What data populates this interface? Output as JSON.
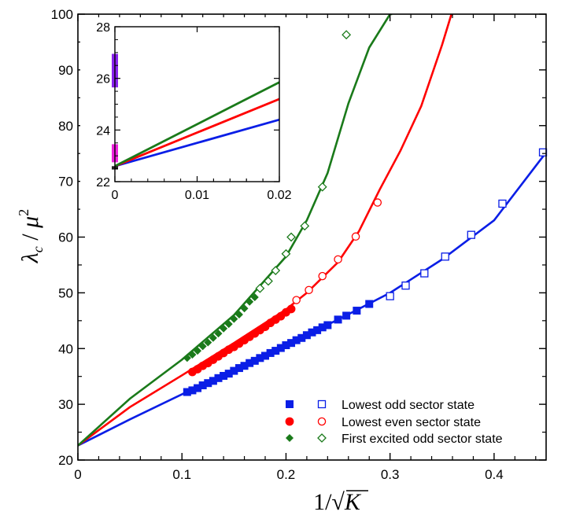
{
  "chart_data": [
    {
      "type": "line",
      "id": "main",
      "xlabel": "1/√K",
      "ylabel": "λc / μ²",
      "xlim": [
        0,
        0.45
      ],
      "ylim": [
        20,
        100
      ],
      "xticks": [
        "0",
        "0.1",
        "0.2",
        "0.3",
        "0.4"
      ],
      "xtick_values": [
        0,
        0.1,
        0.2,
        0.3,
        0.4
      ],
      "yticks": [
        "20",
        "30",
        "40",
        "50",
        "60",
        "70",
        "80",
        "90",
        "100"
      ],
      "ytick_values": [
        20,
        30,
        40,
        50,
        60,
        70,
        80,
        90,
        100
      ],
      "legend_position": "bottom-right",
      "series": [
        {
          "name": "Lowest odd sector state",
          "color": "#0a1ee6",
          "curve": {
            "x": [
              0,
              0.05,
              0.1,
              0.15,
              0.2,
              0.25,
              0.3,
              0.35,
              0.4,
              0.45
            ],
            "y": [
              22.6,
              27.3,
              31.8,
              36.3,
              40.7,
              45.2,
              50.0,
              56.0,
              63.0,
              75.2
            ]
          },
          "filled": {
            "x": [
              0.105,
              0.11,
              0.115,
              0.12,
              0.125,
              0.13,
              0.135,
              0.14,
              0.145,
              0.15,
              0.155,
              0.16,
              0.165,
              0.17,
              0.175,
              0.18,
              0.185,
              0.19,
              0.195,
              0.2,
              0.205,
              0.21,
              0.215,
              0.22,
              0.225,
              0.23,
              0.235,
              0.24,
              0.25,
              0.258,
              0.268,
              0.28
            ],
            "y": [
              32.2,
              32.5,
              32.9,
              33.4,
              33.8,
              34.2,
              34.7,
              35.1,
              35.5,
              36.0,
              36.5,
              36.9,
              37.4,
              37.8,
              38.3,
              38.7,
              39.2,
              39.6,
              40.1,
              40.6,
              41.0,
              41.5,
              41.9,
              42.4,
              42.9,
              43.3,
              43.8,
              44.2,
              45.2,
              45.9,
              46.8,
              48.0
            ]
          },
          "open": {
            "x": [
              0.3,
              0.315,
              0.333,
              0.353,
              0.378,
              0.408,
              0.447
            ],
            "y": [
              49.4,
              51.3,
              53.5,
              56.5,
              60.4,
              66.0,
              75.2
            ]
          }
        },
        {
          "name": "Lowest even sector state",
          "color": "#ff0000",
          "curve": {
            "x": [
              0,
              0.05,
              0.1,
              0.15,
              0.2,
              0.22,
              0.25,
              0.27,
              0.29,
              0.31,
              0.33,
              0.35,
              0.359
            ],
            "y": [
              22.6,
              29.5,
              35.2,
              41.0,
              47.0,
              50.0,
              55.5,
              61.0,
              68.5,
              75.5,
              83.5,
              94.5,
              100
            ]
          },
          "filled": {
            "x": [
              0.11,
              0.115,
              0.12,
              0.125,
              0.13,
              0.135,
              0.14,
              0.145,
              0.15,
              0.155,
              0.16,
              0.165,
              0.17,
              0.175,
              0.18,
              0.185,
              0.19,
              0.195,
              0.2,
              0.205
            ],
            "y": [
              35.8,
              36.3,
              36.9,
              37.4,
              38.0,
              38.6,
              39.2,
              39.8,
              40.3,
              40.9,
              41.5,
              42.1,
              42.7,
              43.3,
              43.9,
              44.6,
              45.2,
              45.8,
              46.5,
              47.1
            ]
          },
          "open": {
            "x": [
              0.21,
              0.222,
              0.235,
              0.25,
              0.267,
              0.288
            ],
            "y": [
              48.7,
              50.5,
              53.0,
              56.0,
              60.1,
              66.2
            ]
          }
        },
        {
          "name": "First excited odd sector state",
          "color": "#1a7a1a",
          "curve": {
            "x": [
              0,
              0.05,
              0.1,
              0.15,
              0.2,
              0.22,
              0.24,
              0.26,
              0.28,
              0.3,
              0.302
            ],
            "y": [
              22.6,
              31.0,
              38.0,
              46.0,
              56.5,
              63.0,
              71.5,
              84.0,
              94.0,
              100,
              100
            ]
          },
          "filled": {
            "x": [
              0.105,
              0.11,
              0.115,
              0.12,
              0.125,
              0.13,
              0.135,
              0.14,
              0.145,
              0.15,
              0.155,
              0.16,
              0.165,
              0.17
            ],
            "y": [
              38.3,
              38.9,
              39.6,
              40.4,
              41.1,
              41.9,
              42.7,
              43.6,
              44.4,
              45.3,
              46.1,
              47.2,
              48.4,
              49.2
            ]
          },
          "open": {
            "x": [
              0.175,
              0.183,
              0.19,
              0.2,
              0.205,
              0.218,
              0.235,
              0.258
            ],
            "y": [
              50.8,
              52.1,
              54.0,
              57.0,
              60.0,
              62.0,
              69.0,
              96.3
            ]
          }
        }
      ]
    },
    {
      "type": "line",
      "id": "inset",
      "xlim": [
        0,
        0.02
      ],
      "ylim": [
        22,
        28
      ],
      "xticks": [
        "0",
        "0.01",
        "0.02"
      ],
      "xtick_values": [
        0,
        0.01,
        0.02
      ],
      "yticks": [
        "22",
        "24",
        "26",
        "28"
      ],
      "ytick_values": [
        22,
        24,
        26,
        28
      ],
      "series": [
        {
          "name": "Lowest odd sector state",
          "color": "#0a1ee6",
          "x": [
            0,
            0.02
          ],
          "y": [
            22.6,
            24.4
          ]
        },
        {
          "name": "Lowest even sector state",
          "color": "#ff0000",
          "x": [
            0,
            0.02
          ],
          "y": [
            22.6,
            25.2
          ]
        },
        {
          "name": "First excited odd sector state",
          "color": "#1a7a1a",
          "x": [
            0,
            0.02
          ],
          "y": [
            22.6,
            25.85
          ]
        }
      ],
      "markers": [
        {
          "x": 0,
          "y0": 25.65,
          "y1": 26.95,
          "color": "#8a22ee"
        },
        {
          "x": 0,
          "y0": 22.75,
          "y1": 23.45,
          "color": "#ee22dd"
        },
        {
          "x": 0,
          "y0": 22.47,
          "y1": 22.6,
          "color": "#222222"
        }
      ]
    }
  ],
  "legend": {
    "items": [
      {
        "label": "Lowest odd sector state",
        "color": "#0a1ee6",
        "shape": "square"
      },
      {
        "label": "Lowest even sector state",
        "color": "#ff0000",
        "shape": "circle"
      },
      {
        "label": "First excited odd sector state",
        "color": "#1a7a1a",
        "shape": "diamond"
      }
    ]
  }
}
